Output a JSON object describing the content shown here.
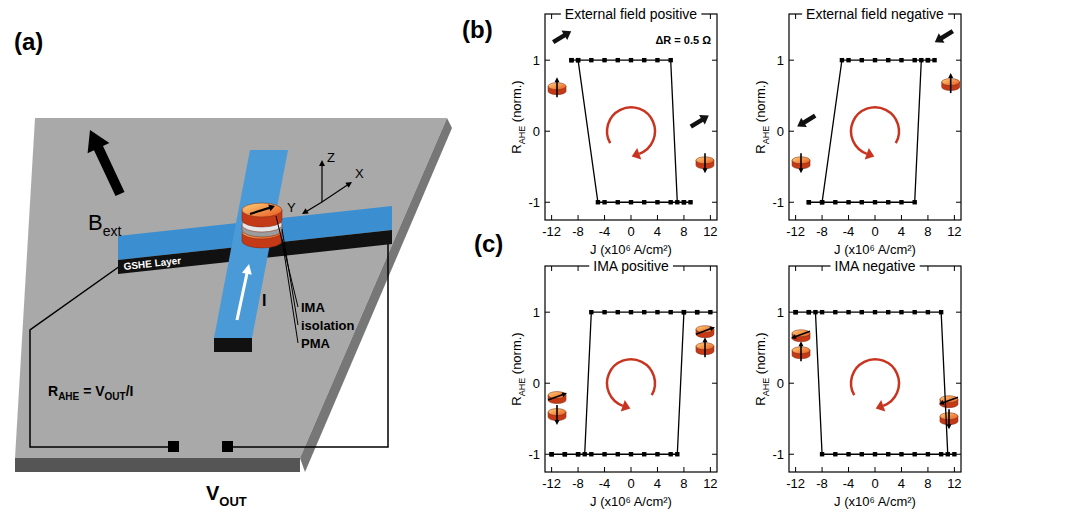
{
  "panel_labels": [
    "(a)",
    "(b)",
    "(c)"
  ],
  "diagram": {
    "field_label": {
      "text": "B",
      "sub": "ext"
    },
    "layer_label": "GSHE Layer",
    "current_label": "I",
    "stack_labels": [
      "IMA",
      "isolation",
      "PMA"
    ],
    "axis_labels": [
      "Z",
      "Y",
      "X"
    ],
    "formula": [
      {
        "text": "R",
        "sub": "AHE"
      },
      {
        "text": " = V",
        "sub": "OUT"
      },
      {
        "text": "/I"
      }
    ],
    "output_label": {
      "text": "V",
      "sub": "OUT"
    }
  },
  "chart_data": [
    {
      "type": "line",
      "title": "External field positive",
      "annotation": "ΔR = 0.5 Ω",
      "xlabel": "J (x10⁶ A/cm²)",
      "ylabel": {
        "text": "R",
        "sub": "AHE",
        "tail": " (norm.)"
      },
      "x": [
        -9,
        -8,
        -6,
        -4,
        -2,
        0,
        2,
        4,
        6,
        7,
        8,
        9,
        8,
        6,
        4,
        2,
        0,
        -2,
        -4,
        -5,
        -8,
        -9
      ],
      "values": [
        1,
        1,
        1,
        1,
        1,
        1,
        1,
        1,
        1,
        -1,
        -1,
        -1,
        -1,
        -1,
        -1,
        -1,
        -1,
        -1,
        -1,
        -1,
        1,
        1
      ],
      "xlim": [
        -13,
        13
      ],
      "ylim": [
        -1.25,
        1.65
      ],
      "xticks": [
        -12,
        -8,
        -4,
        0,
        4,
        8,
        12
      ],
      "yticks": [
        -1,
        0,
        1
      ],
      "color": "#000000",
      "marker": "square"
    },
    {
      "type": "line",
      "title": "External field negative",
      "xlabel": "J (x10⁶ A/cm²)",
      "ylabel": {
        "text": "R",
        "sub": "AHE",
        "tail": " (norm.)"
      },
      "x": [
        -10,
        -8,
        -6,
        -4,
        -2,
        0,
        2,
        4,
        6,
        7,
        8,
        9,
        8,
        6,
        4,
        2,
        0,
        -2,
        -4,
        -5,
        -8,
        -10
      ],
      "values": [
        -1,
        -1,
        -1,
        -1,
        -1,
        -1,
        -1,
        -1,
        -1,
        1,
        1,
        1,
        1,
        1,
        1,
        1,
        1,
        1,
        1,
        1,
        -1,
        -1
      ],
      "xlim": [
        -13,
        13
      ],
      "ylim": [
        -1.25,
        1.65
      ],
      "xticks": [
        -12,
        -8,
        -4,
        0,
        4,
        8,
        12
      ],
      "yticks": [
        -1,
        0,
        1
      ],
      "color": "#000000",
      "marker": "square"
    },
    {
      "type": "line",
      "title": "IMA positive",
      "xlabel": "J (x10⁶ A/cm²)",
      "ylabel": {
        "text": "R",
        "sub": "AHE",
        "tail": " (norm.)"
      },
      "x": [
        -12,
        -10,
        -8,
        -6,
        -4,
        -2,
        0,
        2,
        4,
        6,
        7,
        8,
        10,
        12,
        10,
        8,
        6,
        4,
        2,
        0,
        -2,
        -4,
        -6,
        -7,
        -8,
        -10,
        -12
      ],
      "values": [
        -1,
        -1,
        -1,
        -1,
        -1,
        -1,
        -1,
        -1,
        -1,
        -1,
        -1,
        1,
        1,
        1,
        1,
        1,
        1,
        1,
        1,
        1,
        1,
        1,
        1,
        -1,
        -1,
        -1,
        -1
      ],
      "xlim": [
        -13,
        13
      ],
      "ylim": [
        -1.25,
        1.65
      ],
      "xticks": [
        -12,
        -8,
        -4,
        0,
        4,
        8,
        12
      ],
      "yticks": [
        -1,
        0,
        1
      ],
      "color": "#000000",
      "marker": "square"
    },
    {
      "type": "line",
      "title": "IMA negative",
      "xlabel": "J (x10⁶ A/cm²)",
      "ylabel": {
        "text": "R",
        "sub": "AHE",
        "tail": " (norm.)"
      },
      "x": [
        -12,
        -10,
        -8,
        -6,
        -4,
        -2,
        0,
        2,
        4,
        6,
        8,
        10,
        11,
        12,
        10,
        8,
        6,
        4,
        2,
        0,
        -2,
        -4,
        -6,
        -8,
        -9,
        -10,
        -12
      ],
      "values": [
        1,
        1,
        1,
        1,
        1,
        1,
        1,
        1,
        1,
        1,
        1,
        1,
        -1,
        -1,
        -1,
        -1,
        -1,
        -1,
        -1,
        -1,
        -1,
        -1,
        -1,
        -1,
        1,
        1,
        1
      ],
      "xlim": [
        -13,
        13
      ],
      "ylim": [
        -1.25,
        1.65
      ],
      "xticks": [
        -12,
        -8,
        -4,
        0,
        4,
        8,
        12
      ],
      "yticks": [
        -1,
        0,
        1
      ],
      "color": "#000000",
      "marker": "square"
    }
  ]
}
